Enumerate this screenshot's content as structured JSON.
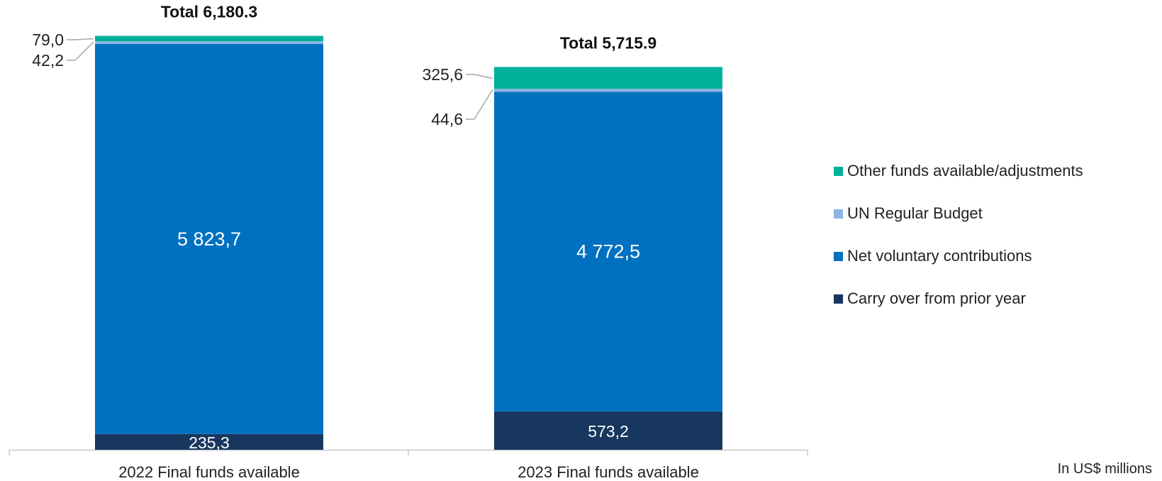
{
  "chart_data": {
    "type": "bar",
    "stacked": true,
    "categories": [
      "2022 Final funds available",
      "2023 Final funds available"
    ],
    "totals": [
      {
        "label": "Total 6,180.3",
        "value": 6180.3
      },
      {
        "label": "Total 5,715.9",
        "value": 5715.9
      }
    ],
    "series": [
      {
        "name": "Carry over from prior year",
        "color": "#17375e",
        "values": [
          235.3,
          573.2
        ],
        "labels": [
          "235,3",
          "573,2"
        ]
      },
      {
        "name": "Net voluntary contributions",
        "color": "#0070c0",
        "values": [
          5823.7,
          4772.5
        ],
        "labels": [
          "5 823,7",
          "4 772,5"
        ]
      },
      {
        "name": "UN Regular Budget",
        "color": "#8db4e2",
        "values": [
          42.2,
          44.6
        ],
        "labels": [
          "42,2",
          "44,6"
        ]
      },
      {
        "name": "Other funds available/adjustments",
        "color": "#00b09b",
        "values": [
          79.0,
          325.6
        ],
        "labels": [
          "79,0",
          "325,6"
        ]
      }
    ],
    "legend_order": [
      3,
      2,
      1,
      0
    ],
    "legend_position": "right",
    "unit_note": "In US$ millions",
    "grid": false
  }
}
